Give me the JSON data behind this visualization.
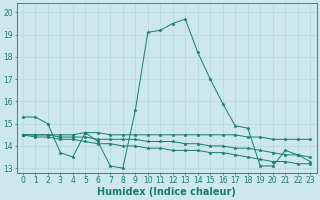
{
  "bg_color": "#cce8ec",
  "line_color": "#1a7a6e",
  "grid_color": "#b8d8dc",
  "xlabel": "Humidex (Indice chaleur)",
  "xlabel_fontsize": 7,
  "ylim": [
    12.8,
    20.4
  ],
  "xlim": [
    -0.5,
    23.5
  ],
  "yticks": [
    13,
    14,
    15,
    16,
    17,
    18,
    19,
    20
  ],
  "xticks": [
    0,
    1,
    2,
    3,
    4,
    5,
    6,
    7,
    8,
    9,
    10,
    11,
    12,
    13,
    14,
    15,
    16,
    17,
    18,
    19,
    20,
    21,
    22,
    23
  ],
  "series": [
    [
      15.3,
      15.3,
      15.0,
      13.7,
      13.5,
      14.6,
      14.2,
      13.1,
      13.0,
      15.6,
      19.1,
      19.2,
      19.5,
      19.7,
      18.2,
      17.0,
      15.9,
      14.9,
      14.8,
      13.1,
      13.1,
      13.8,
      13.6,
      13.3
    ],
    [
      14.5,
      14.5,
      14.5,
      14.5,
      14.5,
      14.6,
      14.6,
      14.5,
      14.5,
      14.5,
      14.5,
      14.5,
      14.5,
      14.5,
      14.5,
      14.5,
      14.5,
      14.5,
      14.4,
      14.4,
      14.3,
      14.3,
      14.3,
      14.3
    ],
    [
      14.5,
      14.5,
      14.5,
      14.4,
      14.4,
      14.4,
      14.3,
      14.3,
      14.3,
      14.3,
      14.2,
      14.2,
      14.2,
      14.1,
      14.1,
      14.0,
      14.0,
      13.9,
      13.9,
      13.8,
      13.7,
      13.6,
      13.6,
      13.5
    ],
    [
      14.5,
      14.4,
      14.4,
      14.3,
      14.3,
      14.2,
      14.1,
      14.1,
      14.0,
      14.0,
      13.9,
      13.9,
      13.8,
      13.8,
      13.8,
      13.7,
      13.7,
      13.6,
      13.5,
      13.4,
      13.3,
      13.3,
      13.2,
      13.2
    ]
  ],
  "tick_fontsize": 5.5,
  "marker_size": 2.5
}
